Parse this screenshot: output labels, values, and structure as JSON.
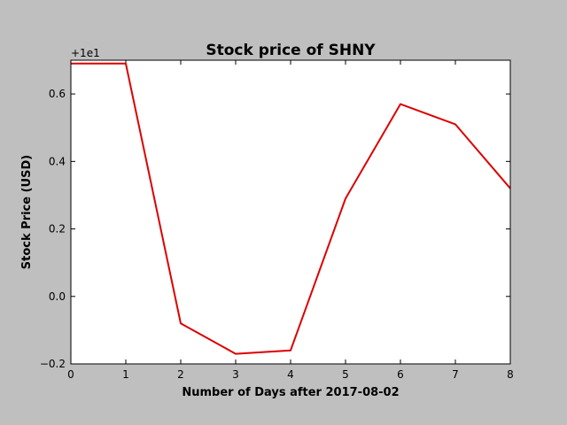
{
  "chart_data": {
    "type": "line",
    "title": "Stock price of SHNY",
    "xlabel": "Number of Days after 2017-08-02",
    "ylabel": "Stock Price (USD)",
    "offset_text": "+1e1",
    "xlim": [
      0,
      8
    ],
    "ylim": [
      -0.2,
      0.7
    ],
    "x_ticks": [
      0,
      1,
      2,
      3,
      4,
      5,
      6,
      7,
      8
    ],
    "x_tick_labels": [
      "0",
      "1",
      "2",
      "3",
      "4",
      "5",
      "6",
      "7",
      "8"
    ],
    "y_ticks": [
      -0.2,
      0.0,
      0.2,
      0.4,
      0.6
    ],
    "y_tick_labels": [
      "−0.2",
      "0.0",
      "0.2",
      "0.4",
      "0.6"
    ],
    "grid": false,
    "series": [
      {
        "color": "#dd0000",
        "x": [
          0,
          1,
          2,
          3,
          4,
          5,
          6,
          7,
          8
        ],
        "y": [
          0.69,
          0.69,
          -0.08,
          -0.17,
          -0.16,
          0.29,
          0.57,
          0.51,
          0.32
        ]
      }
    ]
  }
}
